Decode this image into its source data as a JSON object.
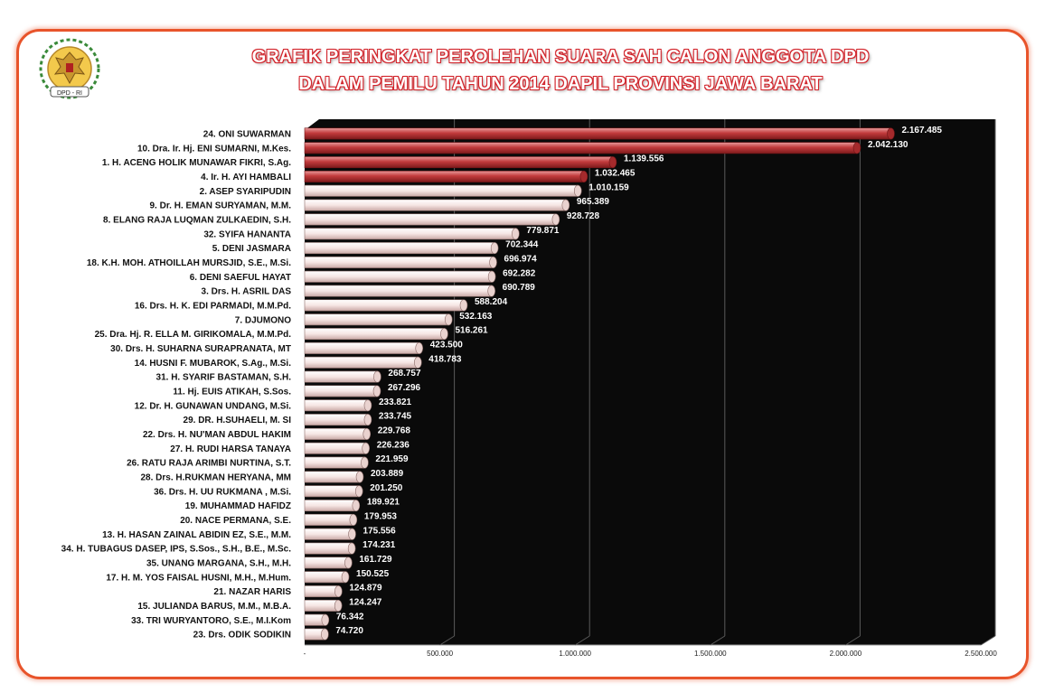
{
  "header": {
    "title_line1": "GRAFIK  PERINGKAT PEROLEHAN SUARA SAH CALON ANGGOTA DPD",
    "title_line2": "DALAM PEMILU TAHUN 2014   DAPIL PROVINSI JAWA BARAT",
    "logo_text": "DPD - RI"
  },
  "colors": {
    "frame": "#e8542b",
    "title_outline": "#d2232a",
    "plot_bg": "#0a0a0a",
    "bar_top4": "#c0393a",
    "bar_rest": "#f4e3e1"
  },
  "chart_data": {
    "type": "bar",
    "orientation": "horizontal",
    "title": "GRAFIK  PERINGKAT PEROLEHAN SUARA SAH CALON ANGGOTA DPD DALAM PEMILU TAHUN 2014   DAPIL PROVINSI JAWA BARAT",
    "xlabel": "",
    "ylabel": "",
    "xlim": [
      0,
      2500000
    ],
    "x_ticks": [
      "-",
      "500.000",
      "1.000.000",
      "1.500.000",
      "2.000.000",
      "2.500.000"
    ],
    "grid": true,
    "highlight_top": 4,
    "categories": [
      "24. ONI SUWARMAN",
      "10. Dra. Ir. Hj. ENI SUMARNI, M.Kes.",
      "1.  H. ACENG HOLIK MUNAWAR FIKRI, S.Ag.",
      "4.  Ir. H. AYI HAMBALI",
      "2.  ASEP SYARIPUDIN",
      "9.  Dr. H. EMAN SURYAMAN, M.M.",
      "8.  ELANG RAJA LUQMAN ZULKAEDIN, S.H.",
      "32. SYIFA HANANTA",
      "5.  DENI JASMARA",
      "18. K.H. MOH. ATHOILLAH MURSJID, S.E., M.Si.",
      "6.  DENI SAEFUL HAYAT",
      "3.  Drs. H. ASRIL DAS",
      "16. Drs. H. K. EDI PARMADI, M.M.Pd.",
      "7.  DJUMONO",
      "25. Dra. Hj. R. ELLA M. GIRIKOMALA, M.M.Pd.",
      "30. Drs. H. SUHARNA SURAPRANATA, MT",
      "14. HUSNI F. MUBAROK, S.Ag., M.Si.",
      "31. H. SYARIF BASTAMAN, S.H.",
      "11. Hj. EUIS ATIKAH, S.Sos.",
      "12. Dr. H. GUNAWAN UNDANG, M.Si.",
      "29. DR. H.SUHAELI, M. SI",
      "22. Drs. H. NU'MAN ABDUL HAKIM",
      "27. H. RUDI HARSA TANAYA",
      "26. RATU RAJA ARIMBI NURTINA, S.T.",
      "28. Drs. H.RUKMAN HERYANA, MM",
      "36. Drs. H. UU RUKMANA , M.Si.",
      "19. MUHAMMAD HAFIDZ",
      "20. NACE PERMANA, S.E.",
      "13. H. HASAN ZAINAL ABIDIN EZ, S.E., M.M.",
      "34. H. TUBAGUS DASEP, IPS, S.Sos., S.H., B.E., M.Sc.",
      "35. UNANG MARGANA, S.H., M.H.",
      "17. H. M. YOS FAISAL HUSNI, M.H., M.Hum.",
      "21. NAZAR HARIS",
      "15. JULIANDA BARUS, M.M., M.B.A.",
      "33. TRI WURYANTORO, S.E., M.I.Kom",
      "23. Drs. ODIK SODIKIN"
    ],
    "values": [
      2167485,
      2042130,
      1139556,
      1032465,
      1010159,
      965389,
      928728,
      779871,
      702344,
      696974,
      692282,
      690789,
      588204,
      532163,
      516261,
      423500,
      418783,
      268757,
      267296,
      233821,
      233745,
      229768,
      226236,
      221959,
      203889,
      201250,
      189921,
      179953,
      175556,
      174231,
      161729,
      150525,
      124879,
      124247,
      76342,
      74720
    ],
    "value_labels": [
      "2.167.485",
      "2.042.130",
      "1.139.556",
      "1.032.465",
      "1.010.159",
      "965.389",
      "928.728",
      "779.871",
      "702.344",
      "696.974",
      "692.282",
      "690.789",
      "588.204",
      "532.163",
      "516.261",
      "423.500",
      "418.783",
      "268.757",
      "267.296",
      "233.821",
      "233.745",
      "229.768",
      "226.236",
      "221.959",
      "203.889",
      "201.250",
      "189.921",
      "179.953",
      "175.556",
      "174.231",
      "161.729",
      "150.525",
      "124.879",
      "124.247",
      "76.342",
      "74.720"
    ]
  }
}
